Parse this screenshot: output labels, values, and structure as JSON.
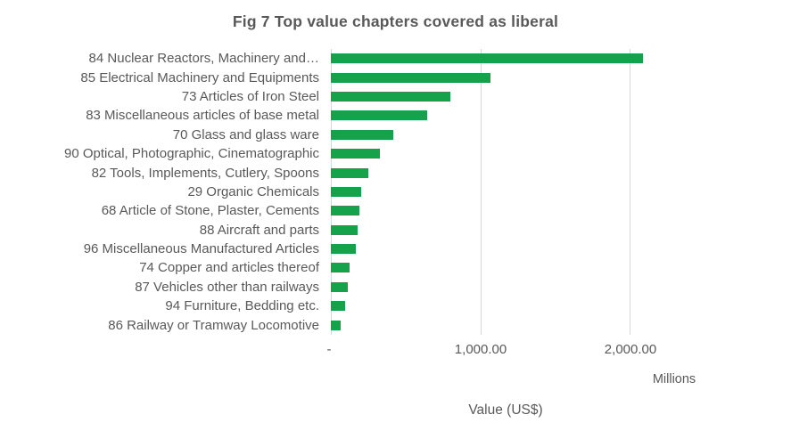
{
  "chart_data": {
    "type": "bar",
    "orientation": "horizontal",
    "title": "Fig 7 Top value chapters covered as liberal",
    "categories": [
      "84 Nuclear Reactors, Machinery and…",
      "85 Electrical Machinery and Equipments",
      "73 Articles of Iron Steel",
      "83 Miscellaneous articles of base metal",
      "70 Glass and glass ware",
      "90 Optical, Photographic, Cinematographic",
      "82 Tools, Implements, Cutlery, Spoons",
      "29 Organic Chemicals",
      "68 Article of Stone, Plaster, Cements",
      "88 Aircraft and parts",
      "96 Miscellaneous Manufactured Articles",
      "74 Copper and articles thereof",
      "87 Vehicles other than railways",
      "94 Furniture, Bedding etc.",
      "86 Railway or Tramway Locomotive"
    ],
    "values": [
      2090,
      1070,
      800,
      645,
      420,
      330,
      250,
      200,
      190,
      180,
      165,
      125,
      115,
      95,
      65
    ],
    "unit": "Millions US$",
    "xlabel": "Value (US$)",
    "units_label": "Millions",
    "x_ticks": [
      "-",
      "1,000.00",
      "2,000.00"
    ],
    "x_tick_values": [
      0,
      1000,
      2000
    ],
    "xlim": [
      0,
      2500
    ],
    "grid": true,
    "legend": false,
    "colors": {
      "bar": "#15A24B",
      "gridline": "#D6D6D6",
      "text": "#595959"
    }
  }
}
